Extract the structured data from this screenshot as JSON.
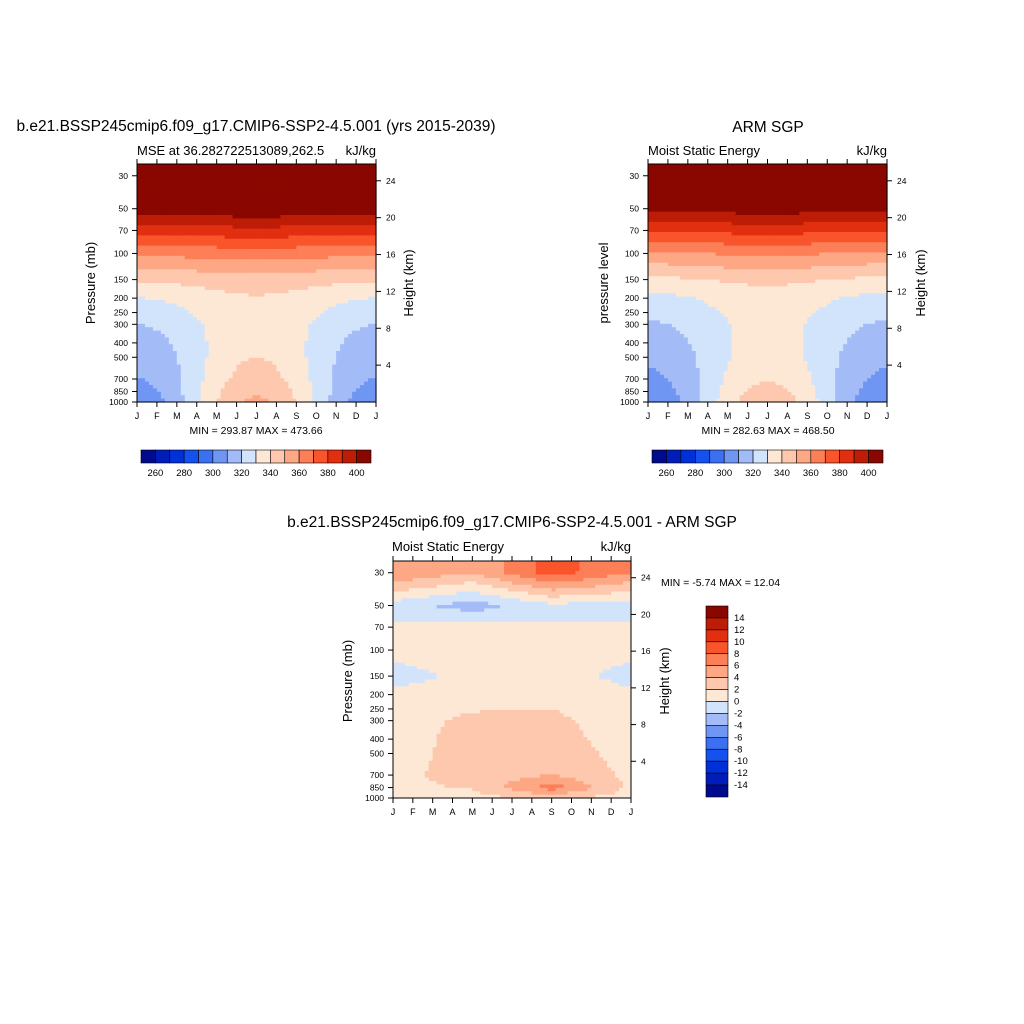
{
  "colors": {
    "mse_scale": [
      "#000a8c",
      "#001db9",
      "#0030da",
      "#1551ee",
      "#3b70f2",
      "#7096f4",
      "#a3bcf7",
      "#d2e4fb",
      "#fde8d6",
      "#fdc8ad",
      "#fda785",
      "#fc7f57",
      "#f9542b",
      "#e22f10",
      "#bd1c06",
      "#8a0700"
    ],
    "diff_scale": [
      "#000a8c",
      "#001db9",
      "#0030da",
      "#1551ee",
      "#3b70f2",
      "#7096f4",
      "#a3bcf7",
      "#d2e4fb",
      "#fde8d6",
      "#fdc8ad",
      "#fda785",
      "#fc7f57",
      "#f9542b",
      "#e22f10",
      "#bd1c06",
      "#8a0700"
    ]
  },
  "panels": {
    "model": {
      "title": "b.e21.BSSP245cmip6.f09_g17.CMIP6-SSP2-4.5.001 (yrs 2015-2039)",
      "left_label": "MSE at 36.282722513089,262.5",
      "units": "kJ/kg",
      "ylabel": "Pressure (mb)",
      "ylabel_right": "Height (km)",
      "minmax": "MIN = 293.87 MAX = 473.66"
    },
    "obs": {
      "title": "ARM SGP",
      "left_label": "Moist Static Energy",
      "units": "kJ/kg",
      "ylabel": "pressure level",
      "ylabel_right": "Height (km)",
      "minmax": "MIN = 282.63 MAX = 468.50"
    },
    "diff": {
      "title": "b.e21.BSSP245cmip6.f09_g17.CMIP6-SSP2-4.5.001 - ARM SGP",
      "left_label": "Moist Static Energy",
      "units": "kJ/kg",
      "ylabel": "Pressure (mb)",
      "ylabel_right": "Height (km)",
      "minmax": "MIN =  -5.74 MAX =  12.04"
    }
  },
  "chart_data": [
    {
      "type": "heatmap",
      "title": "b.e21.BSSP245cmip6.f09_g17.CMIP6-SSP2-4.5.001 (yrs 2015-2039)",
      "x_ticks": [
        "J",
        "F",
        "M",
        "A",
        "M",
        "J",
        "J",
        "A",
        "S",
        "O",
        "N",
        "D",
        "J"
      ],
      "pressure_ticks": [
        30,
        50,
        70,
        100,
        150,
        200,
        250,
        300,
        400,
        500,
        700,
        850,
        1000
      ],
      "height_ticks": [
        4,
        8,
        12,
        16,
        20,
        24
      ],
      "ylim": [
        1000,
        25
      ],
      "levels": [
        260,
        270,
        280,
        290,
        300,
        310,
        320,
        330,
        340,
        350,
        360,
        370,
        380,
        390,
        400
      ],
      "colorbar_labels": [
        "260",
        "280",
        "300",
        "320",
        "340",
        "360",
        "380",
        "400"
      ],
      "profile_pressure": [
        1000,
        850,
        700,
        500,
        400,
        300,
        250,
        200,
        150,
        100,
        70,
        50,
        30
      ],
      "values_jan": [
        304,
        307,
        310,
        313,
        316,
        320,
        324,
        330,
        342,
        362,
        383,
        405,
        450
      ],
      "values_jul": [
        352,
        348,
        344,
        340,
        338,
        337,
        338,
        339,
        345,
        365,
        387,
        408,
        450
      ],
      "minmax": "MIN = 293.87 MAX = 473.66"
    },
    {
      "type": "heatmap",
      "title": "ARM SGP",
      "x_ticks": [
        "J",
        "F",
        "M",
        "A",
        "M",
        "J",
        "J",
        "A",
        "S",
        "O",
        "N",
        "D",
        "J"
      ],
      "pressure_ticks": [
        30,
        50,
        70,
        100,
        150,
        200,
        250,
        300,
        400,
        500,
        700,
        850,
        1000
      ],
      "height_ticks": [
        4,
        8,
        12,
        16,
        20,
        24
      ],
      "ylim": [
        1000,
        25
      ],
      "levels": [
        260,
        270,
        280,
        290,
        300,
        310,
        320,
        330,
        340,
        350,
        360,
        370,
        380,
        390,
        400
      ],
      "colorbar_labels": [
        "260",
        "280",
        "300",
        "320",
        "340",
        "360",
        "380",
        "400"
      ],
      "profile_pressure": [
        1000,
        850,
        700,
        500,
        400,
        300,
        250,
        200,
        150,
        100,
        70,
        50,
        30
      ],
      "values_jan": [
        302,
        305,
        308,
        312,
        315,
        319,
        322,
        327,
        338,
        358,
        380,
        402,
        450
      ],
      "values_jul": [
        347,
        343,
        339,
        335,
        334,
        333,
        334,
        336,
        342,
        362,
        384,
        405,
        450
      ],
      "minmax": "MIN = 282.63 MAX = 468.50"
    },
    {
      "type": "heatmap",
      "title": "b.e21.BSSP245cmip6.f09_g17.CMIP6-SSP2-4.5.001 - ARM SGP",
      "x_ticks": [
        "J",
        "F",
        "M",
        "A",
        "M",
        "J",
        "J",
        "A",
        "S",
        "O",
        "N",
        "D",
        "J"
      ],
      "pressure_ticks": [
        30,
        50,
        70,
        100,
        150,
        200,
        250,
        300,
        400,
        500,
        700,
        850,
        1000
      ],
      "height_ticks": [
        4,
        8,
        12,
        16,
        20,
        24
      ],
      "ylim": [
        1000,
        25
      ],
      "levels": [
        -14,
        -12,
        -10,
        -8,
        -6,
        -4,
        -2,
        0,
        2,
        4,
        6,
        8,
        10,
        12,
        14
      ],
      "colorbar_labels": [
        "14",
        "12",
        "10",
        "8",
        "6",
        "4",
        "2",
        "0",
        "-2",
        "-4",
        "-6",
        "-8",
        "-10",
        "-12",
        "-14"
      ],
      "profile_pressure": [
        1000,
        850,
        700,
        500,
        400,
        300,
        250,
        200,
        150,
        100,
        70,
        50,
        30
      ],
      "values_jan": [
        1,
        1.5,
        1.5,
        1,
        0.8,
        0.7,
        0.6,
        0.4,
        -0.6,
        0.5,
        0.4,
        -1,
        6
      ],
      "values_may": [
        1.2,
        2.2,
        2.8,
        3,
        3,
        2.6,
        1.8,
        0.6,
        0.4,
        1,
        0.6,
        -3,
        4
      ],
      "values_sep": [
        2.5,
        7,
        4,
        3.5,
        3,
        2.5,
        2,
        1.2,
        0.8,
        0.6,
        0.2,
        -0.5,
        9
      ],
      "minmax": "MIN =  -5.74 MAX =  12.04"
    }
  ]
}
